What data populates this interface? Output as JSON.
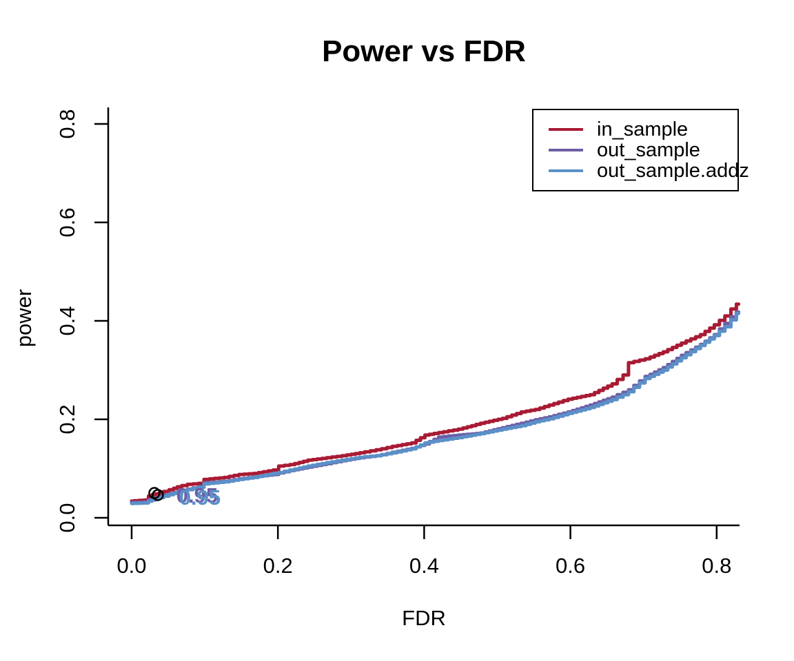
{
  "title": "Power vs FDR",
  "colors": {
    "in_sample": "#A81B34",
    "out_sample": "#6E5FA5",
    "out_sample_addz": "#5B90C8",
    "axis": "#000000",
    "background": "#FFFFFF",
    "annotation_circle": "#000000"
  },
  "legend": {
    "position": "top-right",
    "entries": [
      {
        "label": "in_sample",
        "color": "#A81B34"
      },
      {
        "label": "out_sample",
        "color": "#6E5FA5"
      },
      {
        "label": "out_sample.addz",
        "color": "#5B90C8"
      }
    ]
  },
  "chart_data": {
    "type": "line",
    "title": "Power vs FDR",
    "xlabel": "FDR",
    "ylabel": "power",
    "xlim": [
      -0.033,
      0.862
    ],
    "ylim": [
      -0.016,
      0.835
    ],
    "xticks": [
      0.0,
      0.2,
      0.4,
      0.6,
      0.8
    ],
    "yticks": [
      0.0,
      0.2,
      0.4,
      0.6,
      0.8
    ],
    "grid": false,
    "legend_position": "top-right",
    "x": [
      0.0,
      0.02,
      0.026,
      0.03,
      0.04,
      0.055,
      0.065,
      0.08,
      0.095,
      0.103,
      0.13,
      0.15,
      0.17,
      0.197,
      0.205,
      0.22,
      0.244,
      0.27,
      0.291,
      0.315,
      0.338,
      0.36,
      0.386,
      0.404,
      0.423,
      0.45,
      0.48,
      0.51,
      0.536,
      0.555,
      0.574,
      0.6,
      0.63,
      0.66,
      0.676,
      0.683,
      0.706,
      0.73,
      0.755,
      0.781,
      0.8,
      0.815,
      0.824,
      0.83
    ],
    "series": [
      {
        "name": "in_sample",
        "color": "#A81B34",
        "y": [
          0.034,
          0.036,
          0.044,
          0.047,
          0.05,
          0.057,
          0.063,
          0.068,
          0.07,
          0.078,
          0.082,
          0.088,
          0.09,
          0.097,
          0.105,
          0.108,
          0.117,
          0.122,
          0.126,
          0.132,
          0.138,
          0.145,
          0.152,
          0.168,
          0.173,
          0.18,
          0.192,
          0.202,
          0.215,
          0.22,
          0.229,
          0.241,
          0.25,
          0.272,
          0.29,
          0.315,
          0.323,
          0.337,
          0.355,
          0.372,
          0.392,
          0.41,
          0.424,
          0.434
        ]
      },
      {
        "name": "out_sample",
        "color": "#6E5FA5",
        "y": [
          0.031,
          0.032,
          0.036,
          0.038,
          0.043,
          0.049,
          0.053,
          0.058,
          0.063,
          0.071,
          0.074,
          0.079,
          0.083,
          0.088,
          0.091,
          0.096,
          0.103,
          0.11,
          0.116,
          0.122,
          0.126,
          0.133,
          0.141,
          0.15,
          0.164,
          0.168,
          0.172,
          0.183,
          0.192,
          0.199,
          0.205,
          0.215,
          0.229,
          0.245,
          0.255,
          0.26,
          0.287,
          0.305,
          0.33,
          0.352,
          0.372,
          0.395,
          0.408,
          0.418
        ]
      },
      {
        "name": "out_sample.addz",
        "color": "#5B90C8",
        "y": [
          0.029,
          0.03,
          0.034,
          0.036,
          0.041,
          0.047,
          0.052,
          0.057,
          0.062,
          0.069,
          0.073,
          0.078,
          0.082,
          0.09,
          0.092,
          0.097,
          0.105,
          0.112,
          0.117,
          0.123,
          0.126,
          0.132,
          0.14,
          0.152,
          0.157,
          0.163,
          0.171,
          0.18,
          0.187,
          0.195,
          0.201,
          0.212,
          0.224,
          0.24,
          0.25,
          0.256,
          0.283,
          0.3,
          0.325,
          0.35,
          0.37,
          0.388,
          0.402,
          0.415
        ]
      }
    ],
    "annotations": {
      "threshold_circles": [
        {
          "x": 0.0311,
          "y": 0.0503
        },
        {
          "x": 0.0358,
          "y": 0.0462
        }
      ],
      "threshold_labels": [
        {
          "text": "0.95",
          "x": 0.0895,
          "y": 0.046,
          "color": "#6E5FA5"
        },
        {
          "text": "0.95",
          "x": 0.0933,
          "y": 0.042,
          "color": "#5B90C8"
        }
      ]
    }
  }
}
